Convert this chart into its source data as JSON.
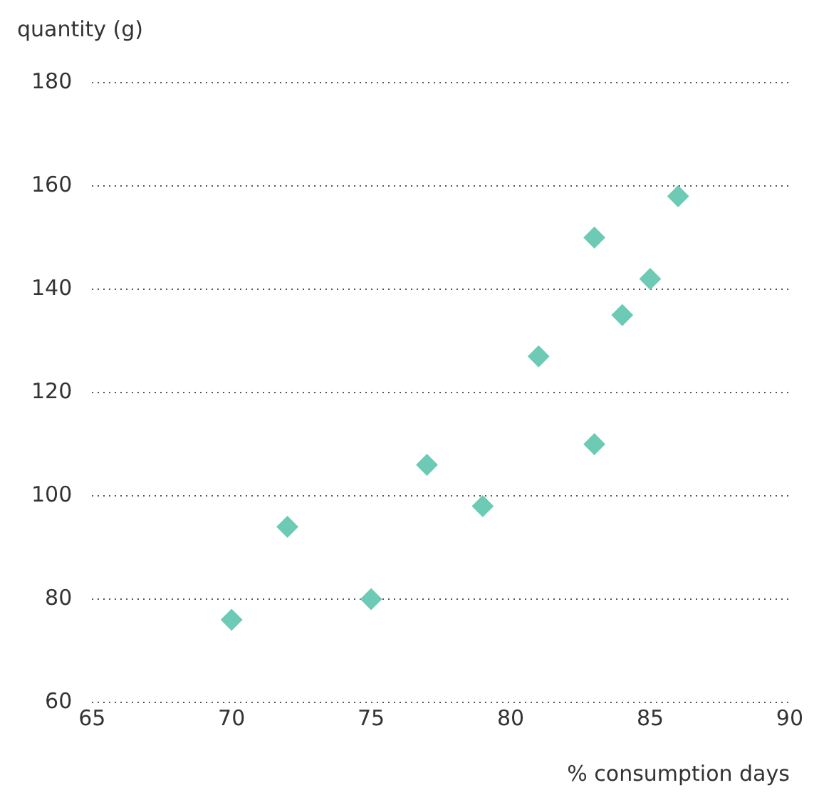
{
  "chart_data": {
    "type": "scatter",
    "xlabel": "% consumption days",
    "ylabel": "quantity (g)",
    "x": [
      70,
      72,
      75,
      77,
      79,
      81,
      83,
      83,
      84,
      85,
      86
    ],
    "series": [
      {
        "color": "#6dcab5",
        "values": [
          76,
          94,
          80,
          106,
          98,
          127,
          150,
          110,
          135,
          142,
          158
        ]
      }
    ],
    "xlim": [
      65,
      90
    ],
    "xticks": [
      65,
      70,
      75,
      80,
      85,
      90
    ],
    "ylim": [
      60,
      180
    ],
    "yticks": [
      60,
      80,
      100,
      120,
      140,
      160,
      180
    ],
    "grid": "y",
    "legend": false,
    "marker": "diamond"
  }
}
